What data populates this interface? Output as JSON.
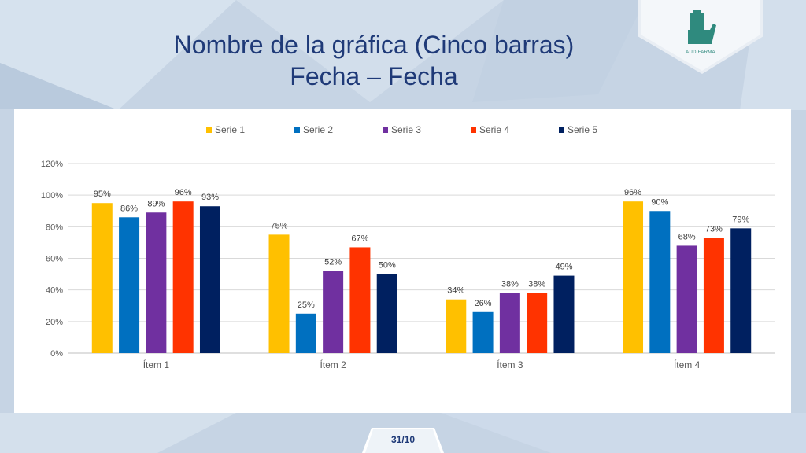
{
  "slide": {
    "title_line1": "Nombre de la gráfica (Cinco barras)",
    "title_line2": "Fecha – Fecha",
    "logo_text": "AUDIFARMA",
    "page_number": "31/10"
  },
  "colors": {
    "title": "#1f3a78",
    "background": "#c9d7e6",
    "panel": "#ffffff"
  },
  "chart_data": {
    "type": "bar",
    "categories": [
      "Ítem 1",
      "Ítem 2",
      "Ítem 3",
      "Ítem 4"
    ],
    "series": [
      {
        "name": "Serie 1",
        "color": "#FFC000",
        "values": [
          95,
          75,
          34,
          96
        ]
      },
      {
        "name": "Serie 2",
        "color": "#0070C0",
        "values": [
          86,
          25,
          26,
          90
        ]
      },
      {
        "name": "Serie 3",
        "color": "#7030A0",
        "values": [
          89,
          52,
          38,
          68
        ]
      },
      {
        "name": "Serie 4",
        "color": "#FF3300",
        "values": [
          96,
          67,
          38,
          73
        ]
      },
      {
        "name": "Serie 5",
        "color": "#002060",
        "values": [
          93,
          50,
          49,
          79
        ]
      }
    ],
    "data_labels": [
      [
        "95%",
        "75%",
        "34%",
        "96%"
      ],
      [
        "86%",
        "25%",
        "26%",
        "90%"
      ],
      [
        "89%",
        "52%",
        "38%",
        "68%"
      ],
      [
        "96%",
        "67%",
        "38%",
        "73%"
      ],
      [
        "93%",
        "50%",
        "49%",
        "79%"
      ]
    ],
    "yticks": [
      "0%",
      "20%",
      "40%",
      "60%",
      "80%",
      "100%",
      "120%"
    ],
    "ylim": [
      0,
      120
    ],
    "grid": true,
    "legend_position": "top"
  }
}
